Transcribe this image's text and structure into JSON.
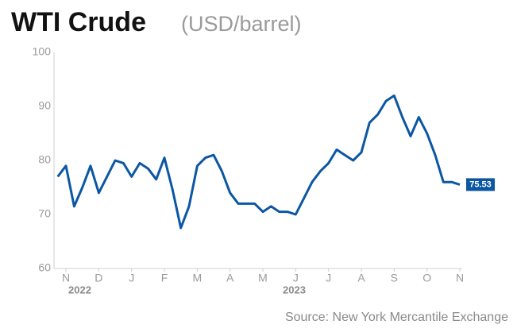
{
  "chart_data": {
    "type": "line",
    "title": "WTI Crude",
    "subtitle": "(USD/barrel)",
    "source": "Source: New York Mercantile Exchange",
    "categories": [
      null,
      "N",
      null,
      null,
      null,
      "D",
      null,
      null,
      null,
      "J",
      null,
      null,
      null,
      "F",
      null,
      null,
      null,
      "M",
      null,
      null,
      null,
      "A",
      null,
      null,
      null,
      "M",
      null,
      null,
      null,
      "J",
      null,
      null,
      null,
      "J",
      null,
      null,
      null,
      "A",
      null,
      null,
      null,
      "S",
      null,
      null,
      null,
      "O",
      null,
      null,
      null,
      "N"
    ],
    "year_labels": [
      "2022",
      "2023"
    ],
    "series": [
      {
        "name": "WTI Crude",
        "color": "#0b57a4",
        "values": [
          77,
          79,
          71.5,
          75,
          79,
          74,
          77,
          80,
          79.5,
          77,
          79.5,
          78.5,
          76.5,
          80.5,
          74.5,
          67.5,
          71.5,
          79,
          80.5,
          81,
          78,
          74,
          72,
          72,
          72,
          70.5,
          71.5,
          70.5,
          70.5,
          70,
          73,
          76,
          78,
          79.5,
          82,
          81,
          80,
          81.5,
          87,
          88.5,
          91,
          92,
          88,
          84.5,
          88,
          85,
          81,
          76,
          76,
          75.53
        ]
      }
    ],
    "ylim": [
      60,
      100
    ],
    "yticks": [
      60,
      70,
      80,
      90,
      100
    ],
    "grid": false
  }
}
